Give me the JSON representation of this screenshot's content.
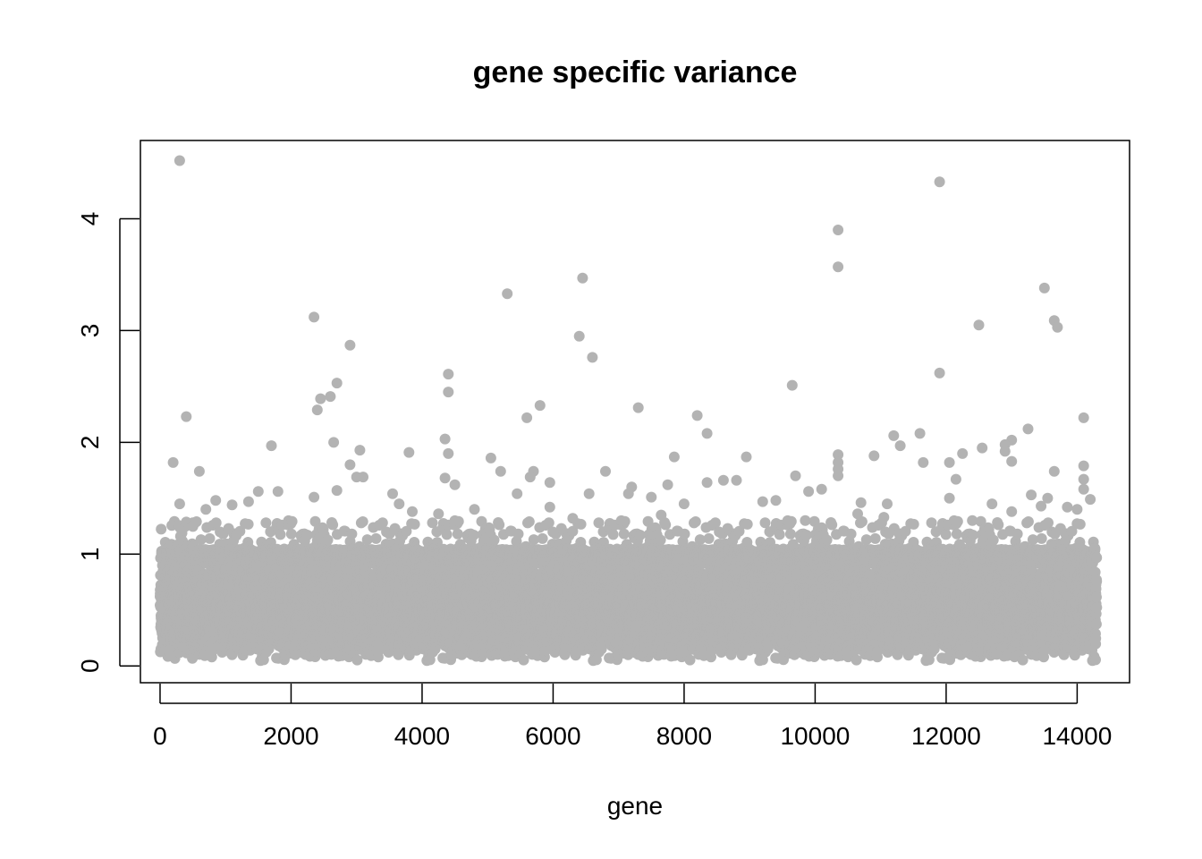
{
  "chart_data": {
    "type": "scatter",
    "title": "gene specific variance",
    "xlabel": "gene",
    "ylabel": "",
    "xlim": [
      -300,
      14800
    ],
    "ylim": [
      -0.15,
      4.7
    ],
    "x_ticks": [
      0,
      2000,
      4000,
      6000,
      8000,
      10000,
      12000,
      14000
    ],
    "y_ticks": [
      0,
      1,
      2,
      3,
      4
    ],
    "x_tick_labels": [
      "0",
      "2000",
      "4000",
      "6000",
      "8000",
      "10000",
      "12000",
      "14000"
    ],
    "y_tick_labels": [
      "0",
      "1",
      "2",
      "3",
      "4"
    ],
    "n_genes": 14300,
    "grid": false,
    "legend": "none",
    "point_color": "#b3b3b3",
    "bulk_range": [
      0.03,
      1.05
    ],
    "series": [
      {
        "points": [
          [
            300,
            4.52
          ],
          [
            11900,
            4.33
          ],
          [
            10350,
            3.9
          ],
          [
            10350,
            3.57
          ],
          [
            13500,
            3.38
          ],
          [
            6450,
            3.47
          ],
          [
            5300,
            3.33
          ],
          [
            2350,
            3.12
          ],
          [
            13650,
            3.09
          ],
          [
            13700,
            3.03
          ],
          [
            12500,
            3.05
          ],
          [
            6400,
            2.95
          ],
          [
            2900,
            2.87
          ],
          [
            6600,
            2.76
          ],
          [
            4400,
            2.61
          ],
          [
            11900,
            2.62
          ],
          [
            2700,
            2.53
          ],
          [
            9650,
            2.51
          ],
          [
            4400,
            2.45
          ],
          [
            2600,
            2.41
          ],
          [
            2450,
            2.39
          ],
          [
            5800,
            2.33
          ],
          [
            7300,
            2.31
          ],
          [
            2400,
            2.29
          ],
          [
            400,
            2.23
          ],
          [
            5600,
            2.22
          ],
          [
            14100,
            2.22
          ],
          [
            8200,
            2.24
          ],
          [
            13250,
            2.12
          ],
          [
            8350,
            2.08
          ],
          [
            11600,
            2.08
          ],
          [
            11200,
            2.06
          ],
          [
            4350,
            2.03
          ],
          [
            13000,
            2.02
          ],
          [
            2650,
            2.0
          ],
          [
            11300,
            1.97
          ],
          [
            12900,
            1.98
          ],
          [
            1700,
            1.97
          ],
          [
            12550,
            1.95
          ],
          [
            3050,
            1.93
          ],
          [
            3800,
            1.91
          ],
          [
            4400,
            1.9
          ],
          [
            10350,
            1.89
          ],
          [
            12250,
            1.9
          ],
          [
            12900,
            1.92
          ],
          [
            10900,
            1.88
          ],
          [
            7850,
            1.87
          ],
          [
            8950,
            1.87
          ],
          [
            5050,
            1.86
          ],
          [
            200,
            1.82
          ],
          [
            10350,
            1.82
          ],
          [
            11650,
            1.82
          ],
          [
            12050,
            1.82
          ],
          [
            13000,
            1.83
          ],
          [
            2900,
            1.8
          ],
          [
            14100,
            1.79
          ],
          [
            10350,
            1.76
          ],
          [
            5200,
            1.74
          ],
          [
            6800,
            1.74
          ],
          [
            600,
            1.74
          ],
          [
            5700,
            1.74
          ],
          [
            13650,
            1.74
          ],
          [
            9700,
            1.7
          ],
          [
            10350,
            1.7
          ],
          [
            3000,
            1.69
          ],
          [
            3100,
            1.69
          ],
          [
            5650,
            1.69
          ],
          [
            4350,
            1.68
          ],
          [
            12150,
            1.67
          ],
          [
            14100,
            1.67
          ],
          [
            8600,
            1.66
          ],
          [
            8800,
            1.66
          ],
          [
            5950,
            1.64
          ],
          [
            8350,
            1.64
          ],
          [
            4500,
            1.62
          ],
          [
            7750,
            1.62
          ],
          [
            7200,
            1.6
          ],
          [
            14100,
            1.58
          ],
          [
            10100,
            1.58
          ],
          [
            9900,
            1.56
          ],
          [
            1800,
            1.56
          ],
          [
            1500,
            1.56
          ],
          [
            2700,
            1.57
          ],
          [
            6550,
            1.54
          ],
          [
            3550,
            1.54
          ],
          [
            5450,
            1.54
          ],
          [
            7150,
            1.54
          ],
          [
            13300,
            1.53
          ],
          [
            2350,
            1.51
          ],
          [
            7500,
            1.51
          ],
          [
            12050,
            1.5
          ],
          [
            13550,
            1.5
          ],
          [
            9400,
            1.48
          ],
          [
            9200,
            1.47
          ],
          [
            14200,
            1.49
          ],
          [
            850,
            1.48
          ],
          [
            1350,
            1.47
          ],
          [
            10700,
            1.46
          ],
          [
            11100,
            1.45
          ],
          [
            12700,
            1.45
          ],
          [
            3650,
            1.45
          ],
          [
            300,
            1.45
          ],
          [
            8000,
            1.45
          ],
          [
            1100,
            1.44
          ],
          [
            13450,
            1.43
          ],
          [
            5950,
            1.42
          ],
          [
            13000,
            1.38
          ],
          [
            14000,
            1.4
          ],
          [
            700,
            1.4
          ],
          [
            3850,
            1.38
          ],
          [
            4250,
            1.36
          ],
          [
            10650,
            1.36
          ],
          [
            7650,
            1.35
          ],
          [
            4800,
            1.4
          ],
          [
            13850,
            1.42
          ],
          [
            11050,
            1.33
          ],
          [
            6300,
            1.32
          ],
          [
            9850,
            1.3
          ],
          [
            12400,
            1.3
          ]
        ]
      }
    ]
  }
}
